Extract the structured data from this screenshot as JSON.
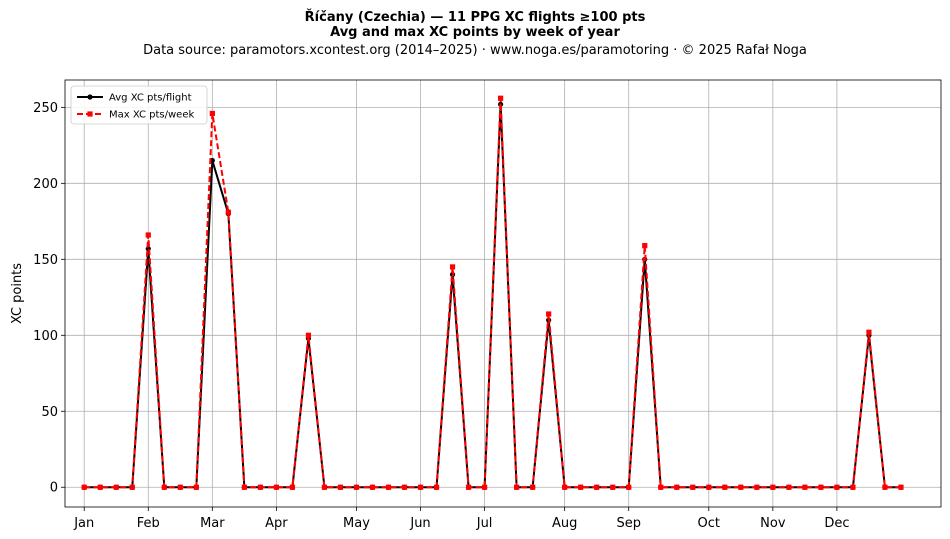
{
  "chart_data": {
    "type": "line",
    "title_line1": "Říčany (Czechia)  —  11 PPG XC flights ≥100 pts",
    "title_line2": "Avg and max XC points by week of year",
    "subtitle": "Data source: paramotors.xcontest.org (2014–2025)  ·  www.noga.es/paramotoring  ·  © 2025 Rafał Noga",
    "ylabel": "XC points",
    "xlabel": "",
    "x": [
      1,
      2,
      3,
      4,
      5,
      6,
      7,
      8,
      9,
      10,
      11,
      12,
      13,
      14,
      15,
      16,
      17,
      18,
      19,
      20,
      21,
      22,
      23,
      24,
      25,
      26,
      27,
      28,
      29,
      30,
      31,
      32,
      33,
      34,
      35,
      36,
      37,
      38,
      39,
      40,
      41,
      42,
      43,
      44,
      45,
      46,
      47,
      48,
      49,
      50,
      51,
      52
    ],
    "xlim": [
      -0.2,
      54.5
    ],
    "ylim": [
      -13,
      268
    ],
    "yticks": [
      0,
      50,
      100,
      150,
      200,
      250
    ],
    "month_ticks": [
      {
        "label": "Jan",
        "x": 1
      },
      {
        "label": "Feb",
        "x": 5
      },
      {
        "label": "Mar",
        "x": 9
      },
      {
        "label": "Apr",
        "x": 13
      },
      {
        "label": "May",
        "x": 18
      },
      {
        "label": "Jun",
        "x": 22
      },
      {
        "label": "Jul",
        "x": 26
      },
      {
        "label": "Aug",
        "x": 31
      },
      {
        "label": "Sep",
        "x": 35
      },
      {
        "label": "Oct",
        "x": 40
      },
      {
        "label": "Nov",
        "x": 44
      },
      {
        "label": "Dec",
        "x": 48
      }
    ],
    "grid": true,
    "legend_position": "top-left",
    "series": [
      {
        "name": "Avg XC pts/flight",
        "color": "#000000",
        "style": "solid",
        "marker": "circle",
        "values": [
          0,
          0,
          0,
          0,
          157,
          0,
          0,
          0,
          215,
          180,
          0,
          0,
          0,
          0,
          98,
          0,
          0,
          0,
          0,
          0,
          0,
          0,
          0,
          140,
          0,
          0,
          252,
          0,
          0,
          110,
          0,
          0,
          0,
          0,
          0,
          150,
          0,
          0,
          0,
          0,
          0,
          0,
          0,
          0,
          0,
          0,
          0,
          0,
          0,
          100,
          0,
          0
        ]
      },
      {
        "name": "Max XC pts/week",
        "color": "#ff0000",
        "style": "dashed",
        "marker": "square",
        "values": [
          0,
          0,
          0,
          0,
          166,
          0,
          0,
          0,
          246,
          181,
          0,
          0,
          0,
          0,
          100,
          0,
          0,
          0,
          0,
          0,
          0,
          0,
          0,
          145,
          0,
          0,
          256,
          0,
          0,
          114,
          0,
          0,
          0,
          0,
          0,
          159,
          0,
          0,
          0,
          0,
          0,
          0,
          0,
          0,
          0,
          0,
          0,
          0,
          0,
          102,
          0,
          0
        ]
      }
    ]
  }
}
